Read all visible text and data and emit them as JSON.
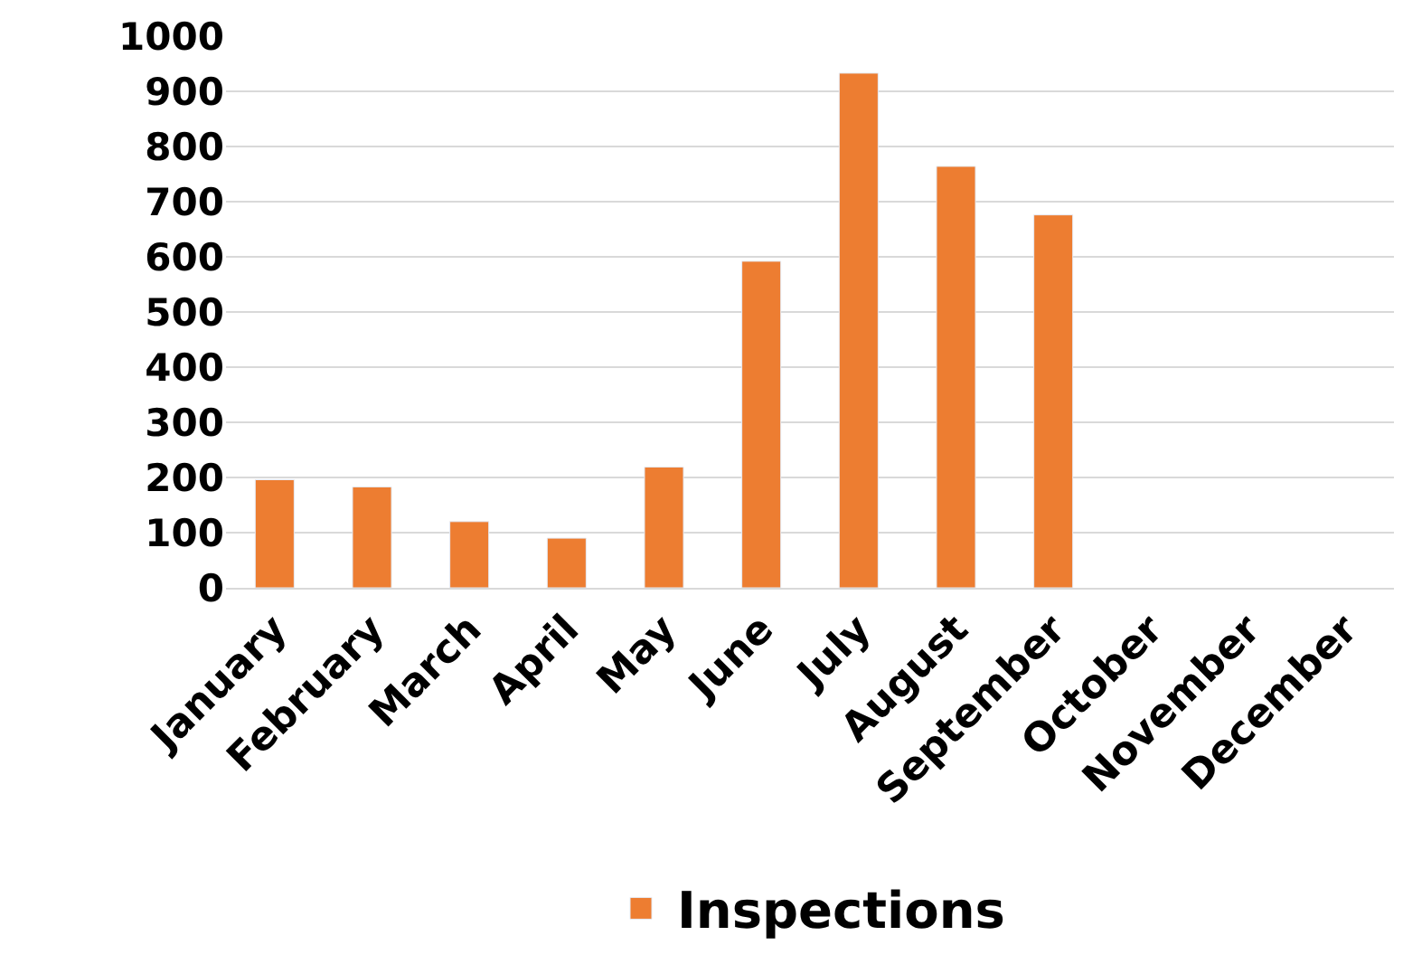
{
  "chart_data": {
    "type": "bar",
    "categories": [
      "January",
      "February",
      "March",
      "April",
      "May",
      "June",
      "July",
      "August",
      "September",
      "October",
      "November",
      "December"
    ],
    "series": [
      {
        "name": "Inspections",
        "color": "#ed7d31",
        "values": [
          196,
          183,
          120,
          90,
          219,
          592,
          933,
          764,
          676,
          null,
          null,
          null
        ]
      }
    ],
    "ylim": [
      0,
      1000
    ],
    "yticks": [
      0,
      100,
      200,
      300,
      400,
      500,
      600,
      700,
      800,
      900,
      1000
    ],
    "grid": "y",
    "legend": "bottom"
  }
}
